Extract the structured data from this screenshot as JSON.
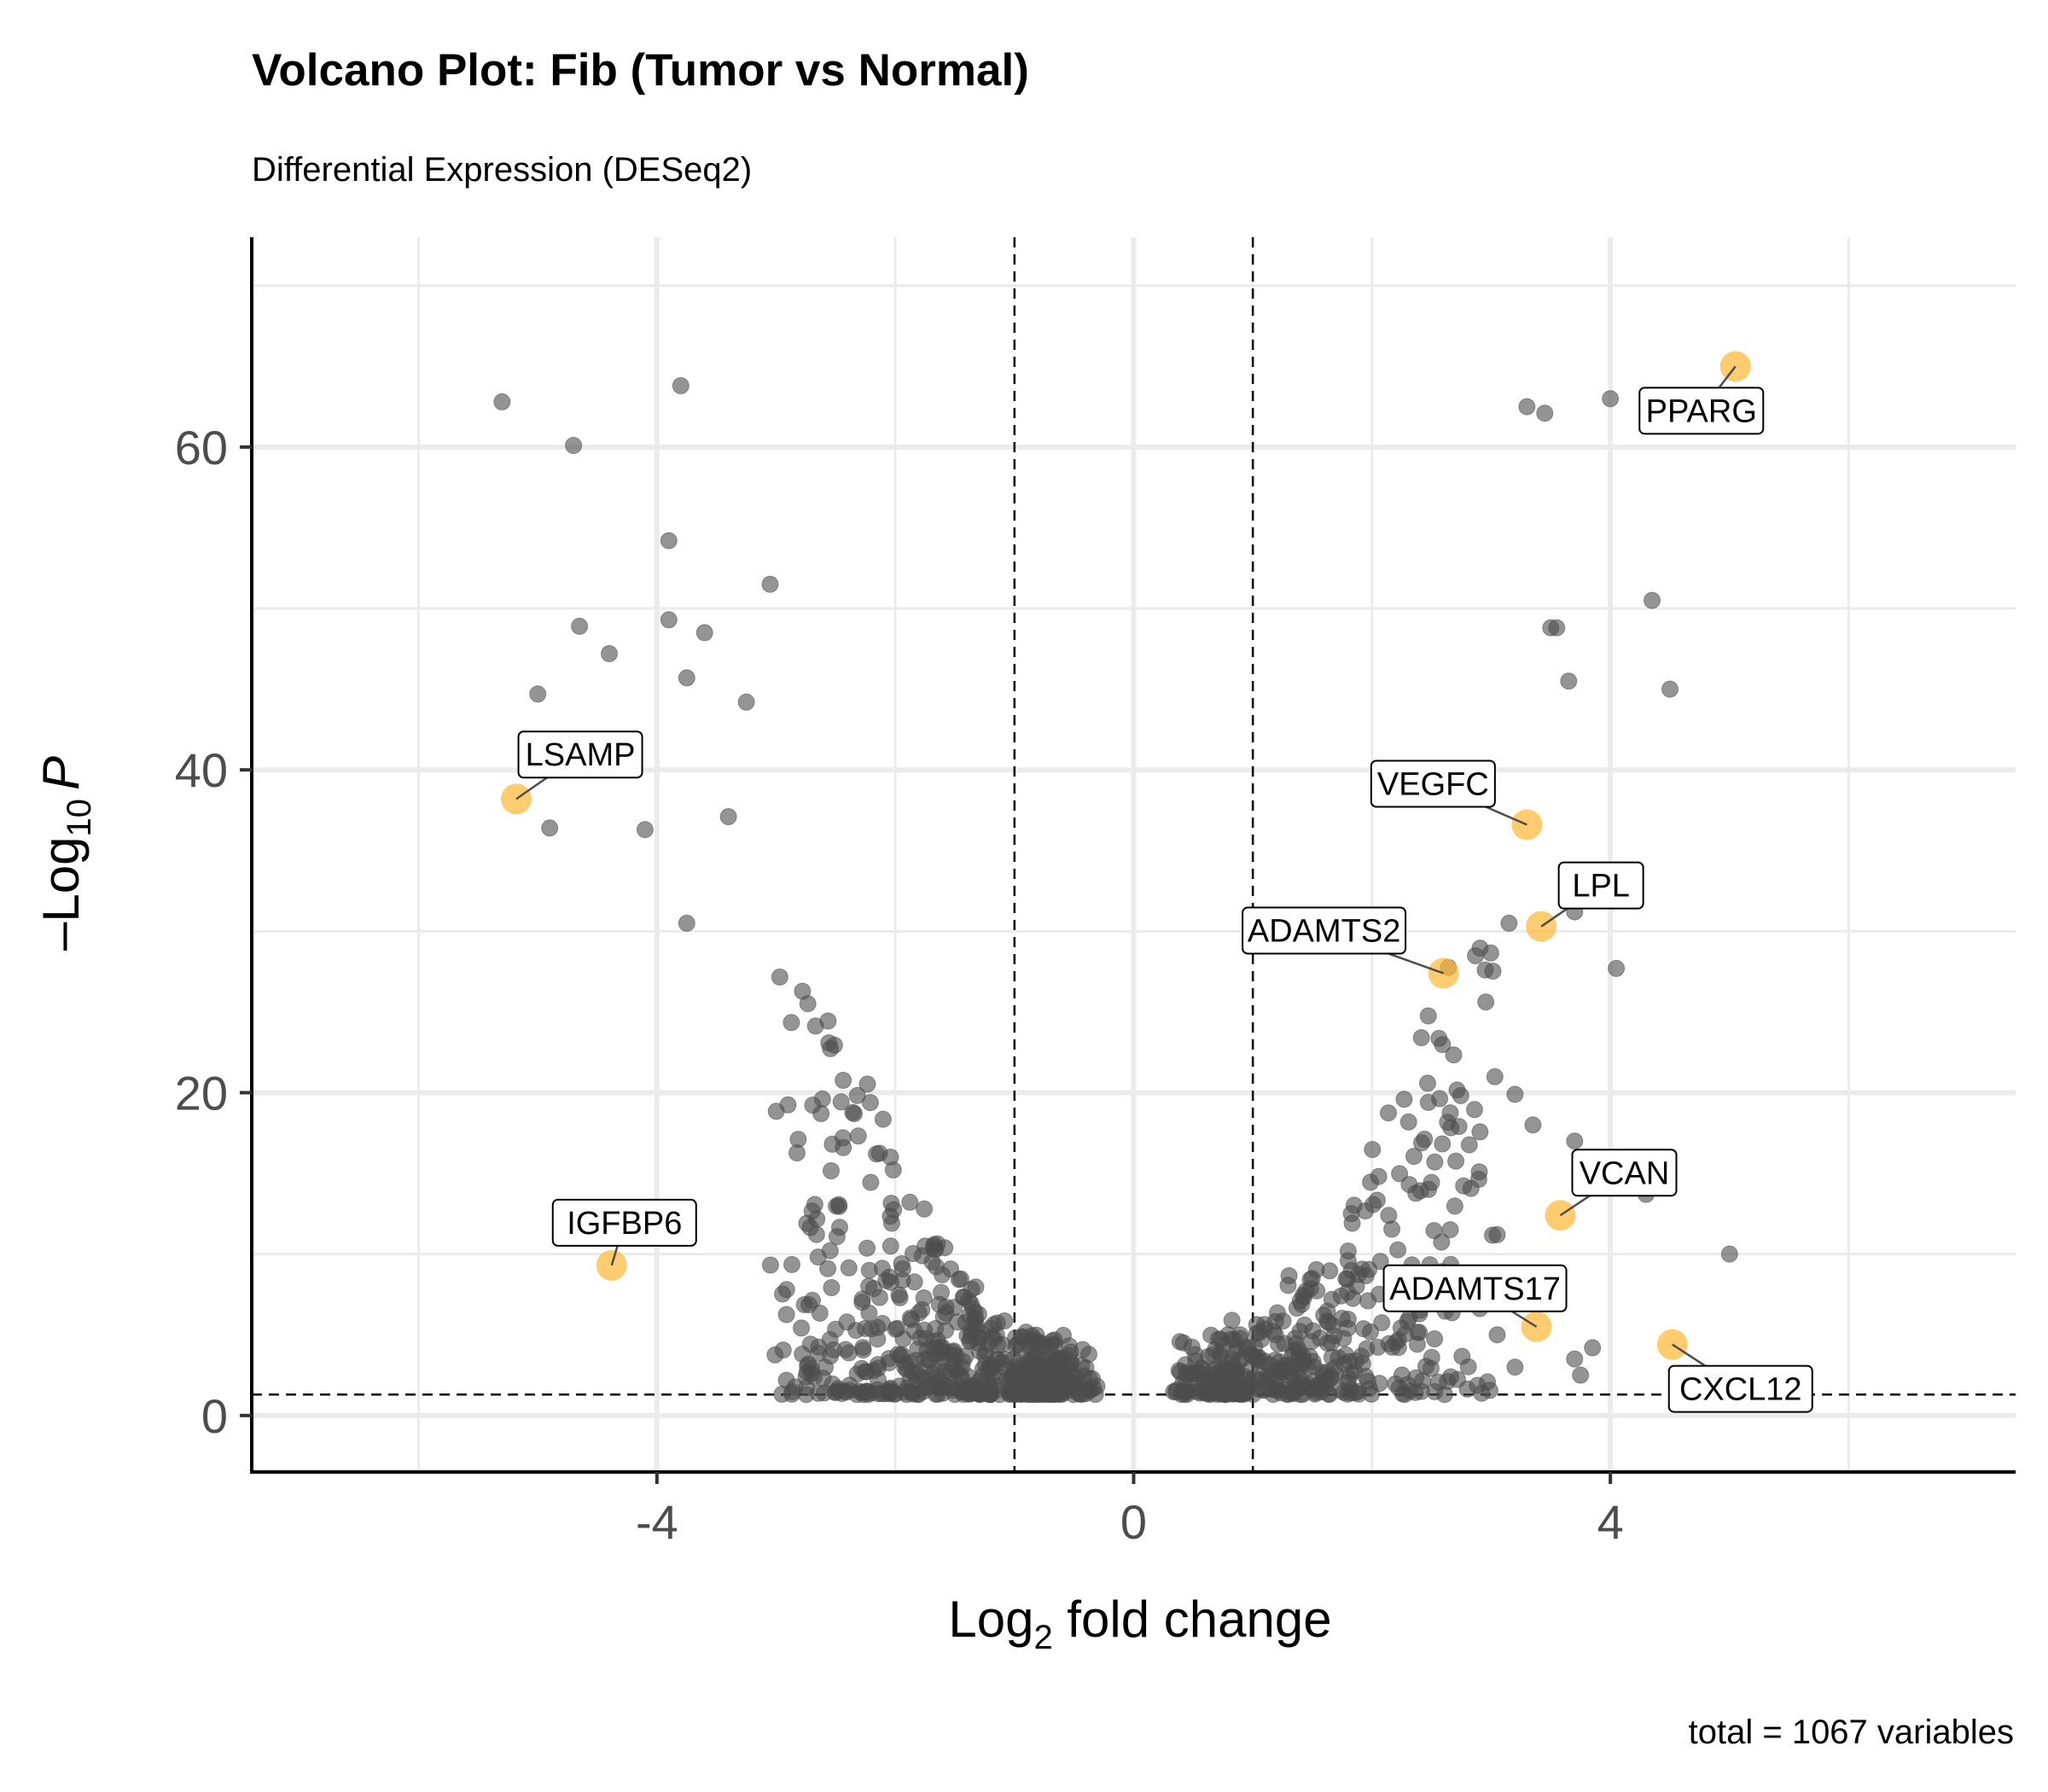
{
  "chart_data": {
    "type": "scatter",
    "title": "Volcano Plot: Fib (Tumor vs Normal)",
    "subtitle": "Differential Expression (DESeq2)",
    "xlabel_main": "Log",
    "xlabel_sub": "2",
    "xlabel_rest": " fold change",
    "ylabel_pre": "–Log",
    "ylabel_sub": "10",
    "ylabel_italic": "P",
    "caption": "total = 1067 variables",
    "xlim": [
      -7.4,
      7.4
    ],
    "ylim": [
      -3.5,
      73
    ],
    "x_ticks": [
      -4,
      0,
      4
    ],
    "x_tick_labels": [
      "-4",
      "0",
      "4"
    ],
    "y_ticks": [
      0,
      20,
      40,
      60
    ],
    "y_tick_labels": [
      "0",
      "20",
      "40",
      "60"
    ],
    "fc_cutoff": [
      -1,
      1
    ],
    "p_cutoff": 1.3,
    "grid": true,
    "colors": {
      "point": "#4d4d4d",
      "highlight": "#ffb733",
      "grid": "#ebebeb"
    },
    "highlighted": [
      {
        "gene": "PPARG",
        "x": 5.05,
        "y": 65.0
      },
      {
        "gene": "LSAMP",
        "x": -5.18,
        "y": 38.2
      },
      {
        "gene": "VEGFC",
        "x": 3.3,
        "y": 36.6
      },
      {
        "gene": "LPL",
        "x": 3.42,
        "y": 30.3
      },
      {
        "gene": "ADAMTS2",
        "x": 2.6,
        "y": 27.4
      },
      {
        "gene": "VCAN",
        "x": 3.58,
        "y": 12.4
      },
      {
        "gene": "IGFBP6",
        "x": -4.38,
        "y": 9.3
      },
      {
        "gene": "ADAMTS17",
        "x": 3.38,
        "y": 5.5
      },
      {
        "gene": "CXCL12",
        "x": 4.52,
        "y": 4.4
      }
    ],
    "outliers": [
      [
        -5.3,
        62.8
      ],
      [
        -3.8,
        63.8
      ],
      [
        -4.7,
        60.1
      ],
      [
        -3.9,
        54.2
      ],
      [
        -3.05,
        51.5
      ],
      [
        -4.65,
        48.9
      ],
      [
        -3.9,
        49.3
      ],
      [
        -3.6,
        48.5
      ],
      [
        -4.4,
        47.2
      ],
      [
        -5.0,
        44.7
      ],
      [
        -3.75,
        45.7
      ],
      [
        -3.25,
        44.2
      ],
      [
        -4.9,
        36.4
      ],
      [
        -4.1,
        36.3
      ],
      [
        -3.4,
        37.1
      ],
      [
        -3.75,
        30.5
      ],
      [
        3.3,
        62.5
      ],
      [
        3.45,
        62.1
      ],
      [
        4.0,
        63.0
      ],
      [
        4.35,
        50.5
      ],
      [
        3.5,
        48.8
      ],
      [
        3.55,
        48.8
      ],
      [
        4.5,
        45.0
      ],
      [
        3.65,
        45.5
      ],
      [
        3.7,
        31.2
      ],
      [
        4.05,
        27.7
      ],
      [
        2.95,
        27.6
      ],
      [
        3.15,
        30.5
      ],
      [
        3.2,
        19.9
      ],
      [
        3.35,
        18.0
      ],
      [
        3.7,
        17.0
      ],
      [
        4.3,
        13.7
      ],
      [
        3.05,
        11.2
      ],
      [
        5.0,
        10.0
      ],
      [
        3.05,
        5.0
      ],
      [
        3.2,
        3.0
      ],
      [
        3.7,
        3.5
      ],
      [
        3.85,
        4.2
      ],
      [
        3.75,
        2.5
      ],
      [
        4.6,
        2.0
      ],
      [
        2.9,
        15.1
      ]
    ]
  }
}
